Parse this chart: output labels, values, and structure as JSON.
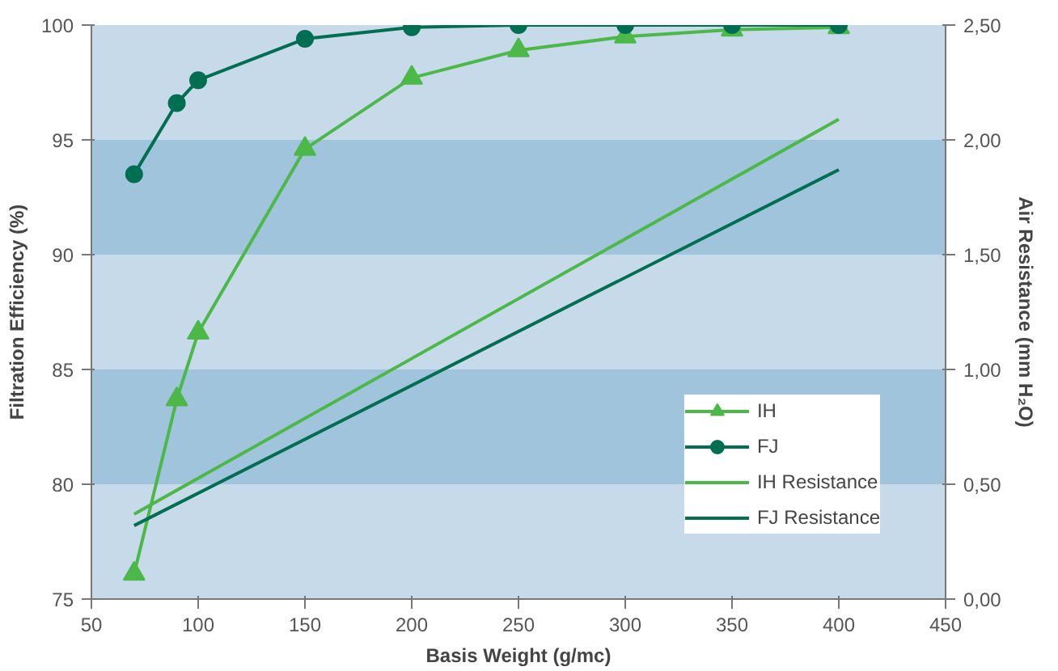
{
  "chart_data": {
    "type": "line",
    "xlabel": "Basis Weight (g/mc)",
    "ylabel": "Filtration Efficiency (%)",
    "y2label": "Air Resistance (mm H₂O)",
    "xlim": [
      50,
      450
    ],
    "xticks": [
      50,
      100,
      150,
      200,
      250,
      300,
      350,
      400,
      450
    ],
    "ylim": [
      75,
      100
    ],
    "yticks": [
      75,
      80,
      85,
      90,
      95,
      100
    ],
    "y2lim": [
      0,
      2.5
    ],
    "y2ticks": [
      {
        "value": 0,
        "label": "0,00"
      },
      {
        "value": 0.5,
        "label": "0,50"
      },
      {
        "value": 1,
        "label": "1,00"
      },
      {
        "value": 1.5,
        "label": "1,50"
      },
      {
        "value": 2,
        "label": "2,00"
      },
      {
        "value": 2.5,
        "label": "2,50"
      }
    ],
    "bands": [
      {
        "axis": "y",
        "from": 75,
        "to": 80,
        "color": "#c6dae9"
      },
      {
        "axis": "y",
        "from": 80,
        "to": 85,
        "color": "#a0c4dc"
      },
      {
        "axis": "y",
        "from": 85,
        "to": 90,
        "color": "#c6dae9"
      },
      {
        "axis": "y",
        "from": 90,
        "to": 95,
        "color": "#a0c4dc"
      },
      {
        "axis": "y",
        "from": 95,
        "to": 100,
        "color": "#c6dae9"
      }
    ],
    "legend": "bottom right",
    "series": [
      {
        "name": "IH",
        "color": "#4cb848",
        "marker": "triangle",
        "x": [
          70,
          90,
          100,
          150,
          200,
          250,
          300,
          350,
          400
        ],
        "values": [
          76.1,
          83.7,
          86.6,
          94.6,
          97.7,
          98.9,
          99.5,
          99.8,
          99.9
        ]
      },
      {
        "name": "FJ",
        "color": "#006f51",
        "marker": "circle",
        "x": [
          70,
          90,
          100,
          150,
          200,
          250,
          300,
          350,
          400
        ],
        "values": [
          93.5,
          96.6,
          97.6,
          99.4,
          99.9,
          100,
          100,
          100,
          100
        ]
      },
      {
        "name": "IH Resistance",
        "color": "#4cb848",
        "marker": "none",
        "axis": "y2",
        "x": [
          70,
          400
        ],
        "values": [
          0.37,
          2.09
        ]
      },
      {
        "name": "FJ Resistance",
        "color": "#006f51",
        "marker": "none",
        "axis": "y2",
        "x": [
          70,
          400
        ],
        "values": [
          0.32,
          1.87
        ]
      }
    ]
  }
}
